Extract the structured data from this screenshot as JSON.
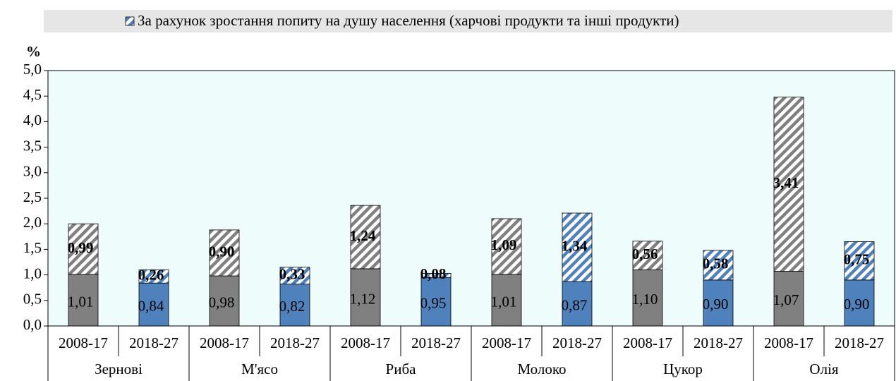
{
  "chart_data": {
    "type": "stacked-bar",
    "y_label": "%",
    "ylim": [
      0,
      5
    ],
    "yticks": [
      {
        "value": 0,
        "label": "0,0"
      },
      {
        "value": 0.5,
        "label": "0,5"
      },
      {
        "value": 1,
        "label": "1,0"
      },
      {
        "value": 1.5,
        "label": "1,5"
      },
      {
        "value": 2,
        "label": "2,0"
      },
      {
        "value": 2.5,
        "label": "2,5"
      },
      {
        "value": 3,
        "label": "3,0"
      },
      {
        "value": 3.5,
        "label": "3,5"
      },
      {
        "value": 4,
        "label": "4,0"
      },
      {
        "value": 4.5,
        "label": "4,5"
      },
      {
        "value": 5,
        "label": "5,0"
      }
    ],
    "groups": [
      "Зернові",
      "М'ясо",
      "Риба",
      "Молоко",
      "Цукор",
      "Олія"
    ],
    "categories": [
      "2008-17",
      "2018-27",
      "2008-17",
      "2018-27",
      "2008-17",
      "2018-27",
      "2008-17",
      "2018-27",
      "2008-17",
      "2018-27",
      "2008-17",
      "2018-27"
    ],
    "series": [
      {
        "colors": [
          "#808080",
          "#4f81bd",
          "#808080",
          "#4f81bd",
          "#808080",
          "#4f81bd",
          "#808080",
          "#4f81bd",
          "#808080",
          "#4f81bd",
          "#808080",
          "#4f81bd"
        ],
        "values": [
          1.01,
          0.84,
          0.98,
          0.82,
          1.12,
          0.95,
          1.01,
          0.87,
          1.1,
          0.9,
          1.07,
          0.9
        ],
        "value_labels": [
          "1,01",
          "0,84",
          "0,98",
          "0,82",
          "1,12",
          "0,95",
          "1,01",
          "0,87",
          "1,10",
          "0,90",
          "1,07",
          "0,90"
        ]
      },
      {
        "name": "За рахунок зростання попиту на душу населення (харчові продукти та інші продукти)",
        "hatched": true,
        "colors": [
          "#808080",
          "#4f81bd",
          "#808080",
          "#4f81bd",
          "#808080",
          "#4f81bd",
          "#808080",
          "#4f81bd",
          "#808080",
          "#4f81bd",
          "#808080",
          "#4f81bd"
        ],
        "values": [
          0.99,
          0.26,
          0.9,
          0.33,
          1.24,
          0.08,
          1.09,
          1.34,
          0.56,
          0.58,
          3.41,
          0.75
        ],
        "value_labels": [
          "0,99",
          "0,26",
          "0,90",
          "0,33",
          "1,24",
          "0,08",
          "1,09",
          "1,34",
          "0,56",
          "0,58",
          "3,41",
          "0,75"
        ]
      }
    ],
    "plot_background": "#eefcfc"
  }
}
